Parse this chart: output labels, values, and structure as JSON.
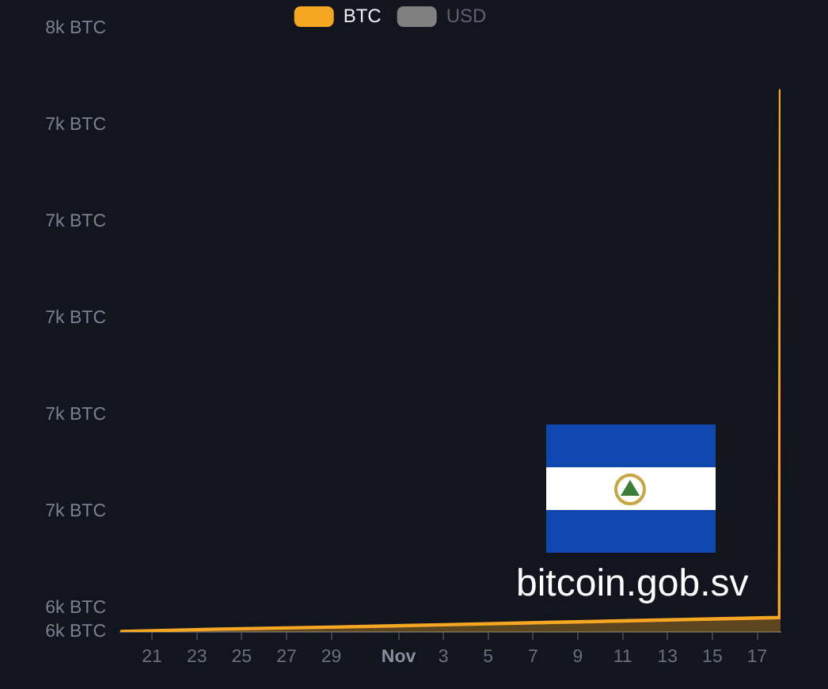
{
  "chart_data": {
    "type": "area",
    "legend": "top",
    "x": [
      "--10-19T14:00",
      "--10-24",
      "--10-29",
      "--11-03",
      "--11-08",
      "--11-13",
      "--11-18T00:00",
      "--11-18T01:00"
    ],
    "series": [
      {
        "name": "BTC",
        "color": "#f5a623",
        "values": [
          6351,
          6356,
          6360,
          6365,
          6370,
          6375,
          6380,
          7474
        ]
      },
      {
        "name": "USD",
        "color": "#808080",
        "values": [
          null,
          null,
          null,
          null,
          null,
          null,
          null,
          null
        ]
      }
    ],
    "xlim": [
      "--10-19T14:00",
      "--11-18T01:00"
    ],
    "xticks": [
      {
        "value": "--10-21",
        "label": "21"
      },
      {
        "value": "--10-23",
        "label": "23"
      },
      {
        "value": "--10-25",
        "label": "25"
      },
      {
        "value": "--10-27",
        "label": "27"
      },
      {
        "value": "--10-29",
        "label": "29"
      },
      {
        "value": "--11-01",
        "label": "Nov"
      },
      {
        "value": "--11-03",
        "label": "3"
      },
      {
        "value": "--11-05",
        "label": "5"
      },
      {
        "value": "--11-07",
        "label": "7"
      },
      {
        "value": "--11-09",
        "label": "9"
      },
      {
        "value": "--11-11",
        "label": "11"
      },
      {
        "value": "--11-13",
        "label": "13"
      },
      {
        "value": "--11-15",
        "label": "15"
      },
      {
        "value": "--11-17",
        "label": "17"
      }
    ],
    "ylim": [
      6350,
      7600
    ],
    "yticks": [
      {
        "value": 6350,
        "label": "6k BTC"
      },
      {
        "value": 6400,
        "label": "6k BTC"
      },
      {
        "value": 6600,
        "label": "7k BTC"
      },
      {
        "value": 6800,
        "label": "7k BTC"
      },
      {
        "value": 7000,
        "label": "7k BTC"
      },
      {
        "value": 7200,
        "label": "7k BTC"
      },
      {
        "value": 7400,
        "label": "7k BTC"
      },
      {
        "value": 7600,
        "label": "8k BTC"
      }
    ],
    "annotations": [
      "bitcoin.gob.sv"
    ]
  }
}
